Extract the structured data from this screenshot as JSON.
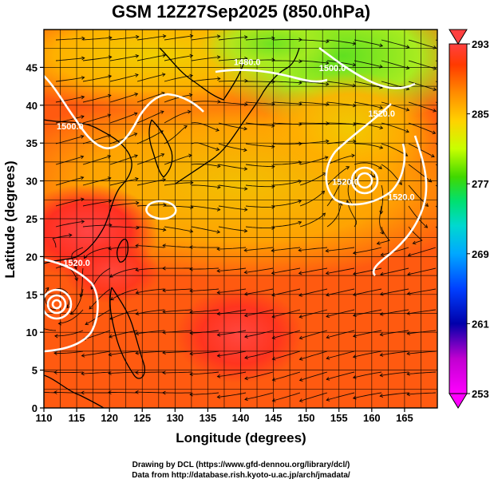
{
  "chart_data": {
    "type": "heatmap",
    "title": "GSM 12Z27Sep2025 (850.0hPa)",
    "xlabel": "Longitude (degrees)",
    "ylabel": "Latitude  (degrees)",
    "xlim": [
      110,
      170
    ],
    "ylim": [
      0,
      50
    ],
    "x_ticks": [
      110,
      115,
      120,
      125,
      130,
      135,
      140,
      145,
      150,
      155,
      160,
      165
    ],
    "y_ticks": [
      0,
      5,
      10,
      15,
      20,
      25,
      30,
      35,
      40,
      45
    ],
    "grid": true,
    "colorbar": {
      "position": "right",
      "ticks": [
        253,
        261,
        269,
        277,
        285,
        293
      ],
      "range": [
        253,
        293
      ],
      "colors": [
        "#ff00ff",
        "#0000aa",
        "#0060ff",
        "#00c8ff",
        "#00e070",
        "#40d800",
        "#c8ff00",
        "#ffd200",
        "#ff8c00",
        "#ff3a00",
        "#ff3a3a"
      ]
    },
    "contours": [
      {
        "label": "1480.0",
        "lon": 141.0,
        "lat": 45.3
      },
      {
        "label": "1500.0",
        "lon": 114.0,
        "lat": 36.8
      },
      {
        "label": "1500.0",
        "lon": 154.0,
        "lat": 44.5
      },
      {
        "label": "1520.0",
        "lon": 156.0,
        "lat": 29.5
      },
      {
        "label": "1520.0",
        "lon": 161.5,
        "lat": 38.5
      },
      {
        "label": "1520.0",
        "lon": 164.5,
        "lat": 27.5
      },
      {
        "label": "1520.0",
        "lon": 115.0,
        "lat": 18.8
      }
    ],
    "field_description": "850hPa temperature (K) shaded, geopotential height contours (m), wind streamlines"
  },
  "footer": {
    "credit_1": "Drawing by DCL (https://www.gfd-dennou.org/library/dcl/)",
    "credit_2": "Data from http://database.rish.kyoto-u.ac.jp/arch/jmadata/"
  }
}
